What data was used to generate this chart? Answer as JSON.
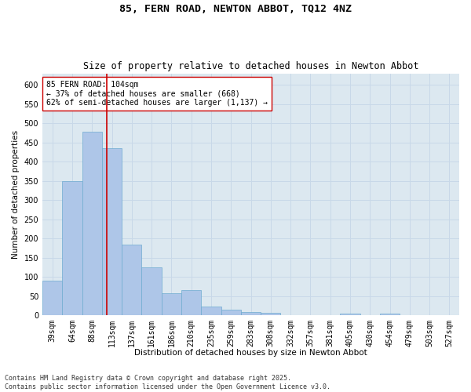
{
  "title_line1": "85, FERN ROAD, NEWTON ABBOT, TQ12 4NZ",
  "title_line2": "Size of property relative to detached houses in Newton Abbot",
  "xlabel": "Distribution of detached houses by size in Newton Abbot",
  "ylabel": "Number of detached properties",
  "categories": [
    "39sqm",
    "64sqm",
    "88sqm",
    "113sqm",
    "137sqm",
    "161sqm",
    "186sqm",
    "210sqm",
    "235sqm",
    "259sqm",
    "283sqm",
    "308sqm",
    "332sqm",
    "357sqm",
    "381sqm",
    "405sqm",
    "430sqm",
    "454sqm",
    "479sqm",
    "503sqm",
    "527sqm"
  ],
  "values": [
    91,
    350,
    478,
    435,
    184,
    125,
    57,
    65,
    22,
    14,
    8,
    7,
    0,
    0,
    0,
    4,
    0,
    4,
    0,
    0,
    0
  ],
  "bar_color": "#aec6e8",
  "bar_edge_color": "#6fabd0",
  "vline_x_idx": 2.75,
  "vline_color": "#cc0000",
  "annotation_text": "85 FERN ROAD: 104sqm\n← 37% of detached houses are smaller (668)\n62% of semi-detached houses are larger (1,137) →",
  "annotation_box_color": "#ffffff",
  "annotation_box_edge": "#cc0000",
  "ylim": [
    0,
    630
  ],
  "yticks": [
    0,
    50,
    100,
    150,
    200,
    250,
    300,
    350,
    400,
    450,
    500,
    550,
    600
  ],
  "grid_color": "#c8d8e8",
  "bg_color": "#dce8f0",
  "footnote": "Contains HM Land Registry data © Crown copyright and database right 2025.\nContains public sector information licensed under the Open Government Licence v3.0.",
  "title_fontsize": 9.5,
  "subtitle_fontsize": 8.5,
  "axis_label_fontsize": 7.5,
  "tick_fontsize": 7,
  "annot_fontsize": 7,
  "footnote_fontsize": 6
}
